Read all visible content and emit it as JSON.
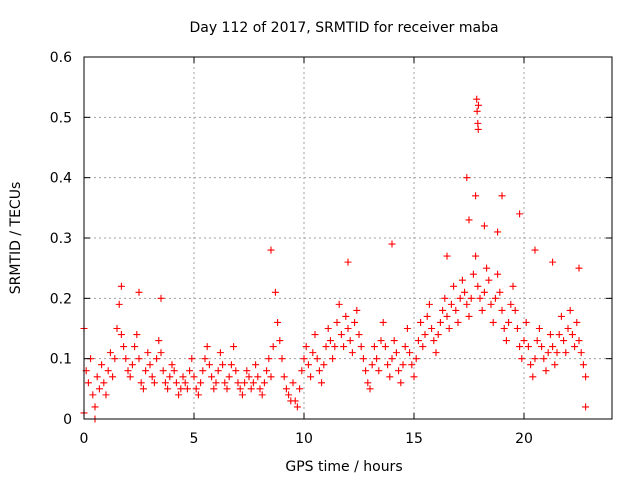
{
  "chart_data": {
    "type": "scatter",
    "title": "Day 112 of 2017, SRMTID for receiver maba",
    "xlabel": "GPS time / hours",
    "ylabel": "SRMTID / TECUs",
    "xlim": [
      0,
      24
    ],
    "ylim": [
      0,
      0.6
    ],
    "x_ticks": [
      0,
      5,
      10,
      15,
      20
    ],
    "y_ticks": [
      0,
      0.1,
      0.2,
      0.3,
      0.4,
      0.5,
      0.6
    ],
    "x_tick_labels": [
      "0",
      "5",
      "10",
      "15",
      "20"
    ],
    "y_tick_labels": [
      "0",
      "0.1",
      "0.2",
      "0.3",
      "0.4",
      "0.5",
      "0.6"
    ],
    "grid": true,
    "marker": "+",
    "marker_color": "#ff0000",
    "series": [
      {
        "name": "SRMTID",
        "x": [
          0.0,
          0.1,
          0.2,
          0.3,
          0.4,
          0.5,
          0.6,
          0.7,
          0.8,
          0.9,
          1.0,
          1.1,
          1.2,
          1.3,
          1.4,
          1.5,
          1.6,
          1.7,
          1.8,
          1.9,
          2.0,
          2.1,
          2.2,
          2.3,
          2.4,
          2.5,
          2.6,
          2.7,
          2.8,
          2.9,
          3.0,
          3.1,
          3.2,
          3.3,
          3.4,
          3.5,
          3.6,
          3.7,
          3.8,
          3.9,
          4.0,
          4.1,
          4.2,
          4.3,
          4.4,
          4.5,
          4.6,
          4.7,
          4.8,
          4.9,
          5.0,
          5.1,
          5.2,
          5.3,
          5.4,
          5.5,
          5.6,
          5.7,
          5.8,
          5.9,
          6.0,
          6.1,
          6.2,
          6.3,
          6.4,
          6.5,
          6.6,
          6.7,
          6.8,
          6.9,
          7.0,
          7.1,
          7.2,
          7.3,
          7.4,
          7.5,
          7.6,
          7.7,
          7.8,
          7.9,
          8.0,
          8.1,
          8.2,
          8.3,
          8.4,
          8.5,
          8.6,
          8.7,
          8.8,
          8.9,
          9.0,
          9.1,
          9.2,
          9.3,
          9.4,
          9.5,
          9.6,
          9.7,
          9.8,
          9.9,
          10.0,
          10.1,
          10.2,
          10.3,
          10.4,
          10.5,
          10.6,
          10.7,
          10.8,
          10.9,
          11.0,
          11.1,
          11.2,
          11.3,
          11.4,
          11.5,
          11.6,
          11.7,
          11.8,
          11.9,
          12.0,
          12.1,
          12.2,
          12.3,
          12.4,
          12.5,
          12.6,
          12.7,
          12.8,
          12.9,
          13.0,
          13.1,
          13.2,
          13.3,
          13.4,
          13.5,
          13.6,
          13.7,
          13.8,
          13.9,
          14.0,
          14.1,
          14.2,
          14.3,
          14.4,
          14.5,
          14.6,
          14.7,
          14.8,
          14.9,
          15.0,
          15.1,
          15.2,
          15.3,
          15.4,
          15.5,
          15.6,
          15.7,
          15.8,
          15.9,
          16.0,
          16.1,
          16.2,
          16.3,
          16.4,
          16.5,
          16.6,
          16.7,
          16.8,
          16.9,
          17.0,
          17.1,
          17.2,
          17.3,
          17.4,
          17.5,
          17.6,
          17.7,
          17.8,
          17.9,
          18.0,
          18.1,
          18.2,
          18.3,
          18.4,
          18.5,
          18.6,
          18.7,
          18.8,
          18.9,
          19.0,
          19.1,
          19.2,
          19.3,
          19.4,
          19.5,
          19.6,
          19.7,
          19.8,
          19.9,
          20.0,
          20.1,
          20.2,
          20.3,
          20.4,
          20.5,
          20.6,
          20.7,
          20.8,
          20.9,
          21.0,
          21.1,
          21.2,
          21.3,
          21.4,
          21.5,
          21.6,
          21.7,
          21.8,
          21.9,
          22.0,
          22.1,
          22.2,
          22.3,
          22.4,
          22.5,
          22.6,
          22.7,
          22.8,
          17.85,
          17.87,
          17.9,
          17.92,
          17.93,
          17.4,
          17.8,
          8.5,
          0.0,
          0.5,
          1.7,
          2.5,
          3.5,
          12.0,
          14.0,
          16.5,
          17.5,
          18.2,
          18.8,
          19.0,
          19.8,
          20.5,
          21.3,
          22.5,
          22.8
        ],
        "y": [
          0.15,
          0.08,
          0.06,
          0.1,
          0.04,
          0.02,
          0.07,
          0.05,
          0.09,
          0.06,
          0.04,
          0.08,
          0.11,
          0.07,
          0.1,
          0.15,
          0.19,
          0.14,
          0.12,
          0.1,
          0.08,
          0.07,
          0.09,
          0.12,
          0.14,
          0.1,
          0.06,
          0.05,
          0.08,
          0.11,
          0.09,
          0.07,
          0.06,
          0.1,
          0.13,
          0.11,
          0.08,
          0.06,
          0.05,
          0.07,
          0.09,
          0.08,
          0.06,
          0.04,
          0.05,
          0.07,
          0.06,
          0.05,
          0.08,
          0.1,
          0.07,
          0.05,
          0.04,
          0.06,
          0.08,
          0.1,
          0.12,
          0.09,
          0.07,
          0.05,
          0.06,
          0.08,
          0.11,
          0.09,
          0.06,
          0.05,
          0.07,
          0.09,
          0.12,
          0.08,
          0.06,
          0.05,
          0.04,
          0.06,
          0.08,
          0.07,
          0.05,
          0.06,
          0.09,
          0.07,
          0.05,
          0.04,
          0.06,
          0.08,
          0.1,
          0.07,
          0.12,
          0.21,
          0.16,
          0.13,
          0.1,
          0.07,
          0.05,
          0.04,
          0.03,
          0.06,
          0.03,
          0.02,
          0.05,
          0.08,
          0.1,
          0.12,
          0.09,
          0.07,
          0.11,
          0.14,
          0.1,
          0.08,
          0.06,
          0.09,
          0.12,
          0.15,
          0.13,
          0.1,
          0.12,
          0.16,
          0.19,
          0.14,
          0.12,
          0.17,
          0.15,
          0.13,
          0.11,
          0.16,
          0.18,
          0.14,
          0.12,
          0.1,
          0.08,
          0.06,
          0.05,
          0.09,
          0.12,
          0.1,
          0.08,
          0.13,
          0.16,
          0.12,
          0.09,
          0.07,
          0.1,
          0.13,
          0.11,
          0.08,
          0.06,
          0.09,
          0.12,
          0.15,
          0.11,
          0.09,
          0.07,
          0.1,
          0.13,
          0.16,
          0.12,
          0.14,
          0.17,
          0.19,
          0.15,
          0.13,
          0.11,
          0.14,
          0.16,
          0.18,
          0.2,
          0.17,
          0.15,
          0.19,
          0.22,
          0.18,
          0.16,
          0.2,
          0.23,
          0.21,
          0.19,
          0.17,
          0.2,
          0.24,
          0.27,
          0.22,
          0.2,
          0.18,
          0.21,
          0.25,
          0.23,
          0.19,
          0.16,
          0.2,
          0.24,
          0.21,
          0.18,
          0.15,
          0.13,
          0.16,
          0.19,
          0.22,
          0.18,
          0.15,
          0.12,
          0.1,
          0.13,
          0.16,
          0.12,
          0.09,
          0.07,
          0.1,
          0.13,
          0.15,
          0.12,
          0.1,
          0.08,
          0.11,
          0.14,
          0.12,
          0.09,
          0.11,
          0.14,
          0.17,
          0.13,
          0.11,
          0.15,
          0.18,
          0.14,
          0.12,
          0.16,
          0.13,
          0.11,
          0.09,
          0.07,
          0.53,
          0.51,
          0.49,
          0.48,
          0.52,
          0.4,
          0.37,
          0.28,
          0.01,
          0.0,
          0.22,
          0.21,
          0.2,
          0.26,
          0.29,
          0.27,
          0.33,
          0.32,
          0.31,
          0.37,
          0.34,
          0.28,
          0.26,
          0.25,
          0.02
        ]
      }
    ]
  }
}
